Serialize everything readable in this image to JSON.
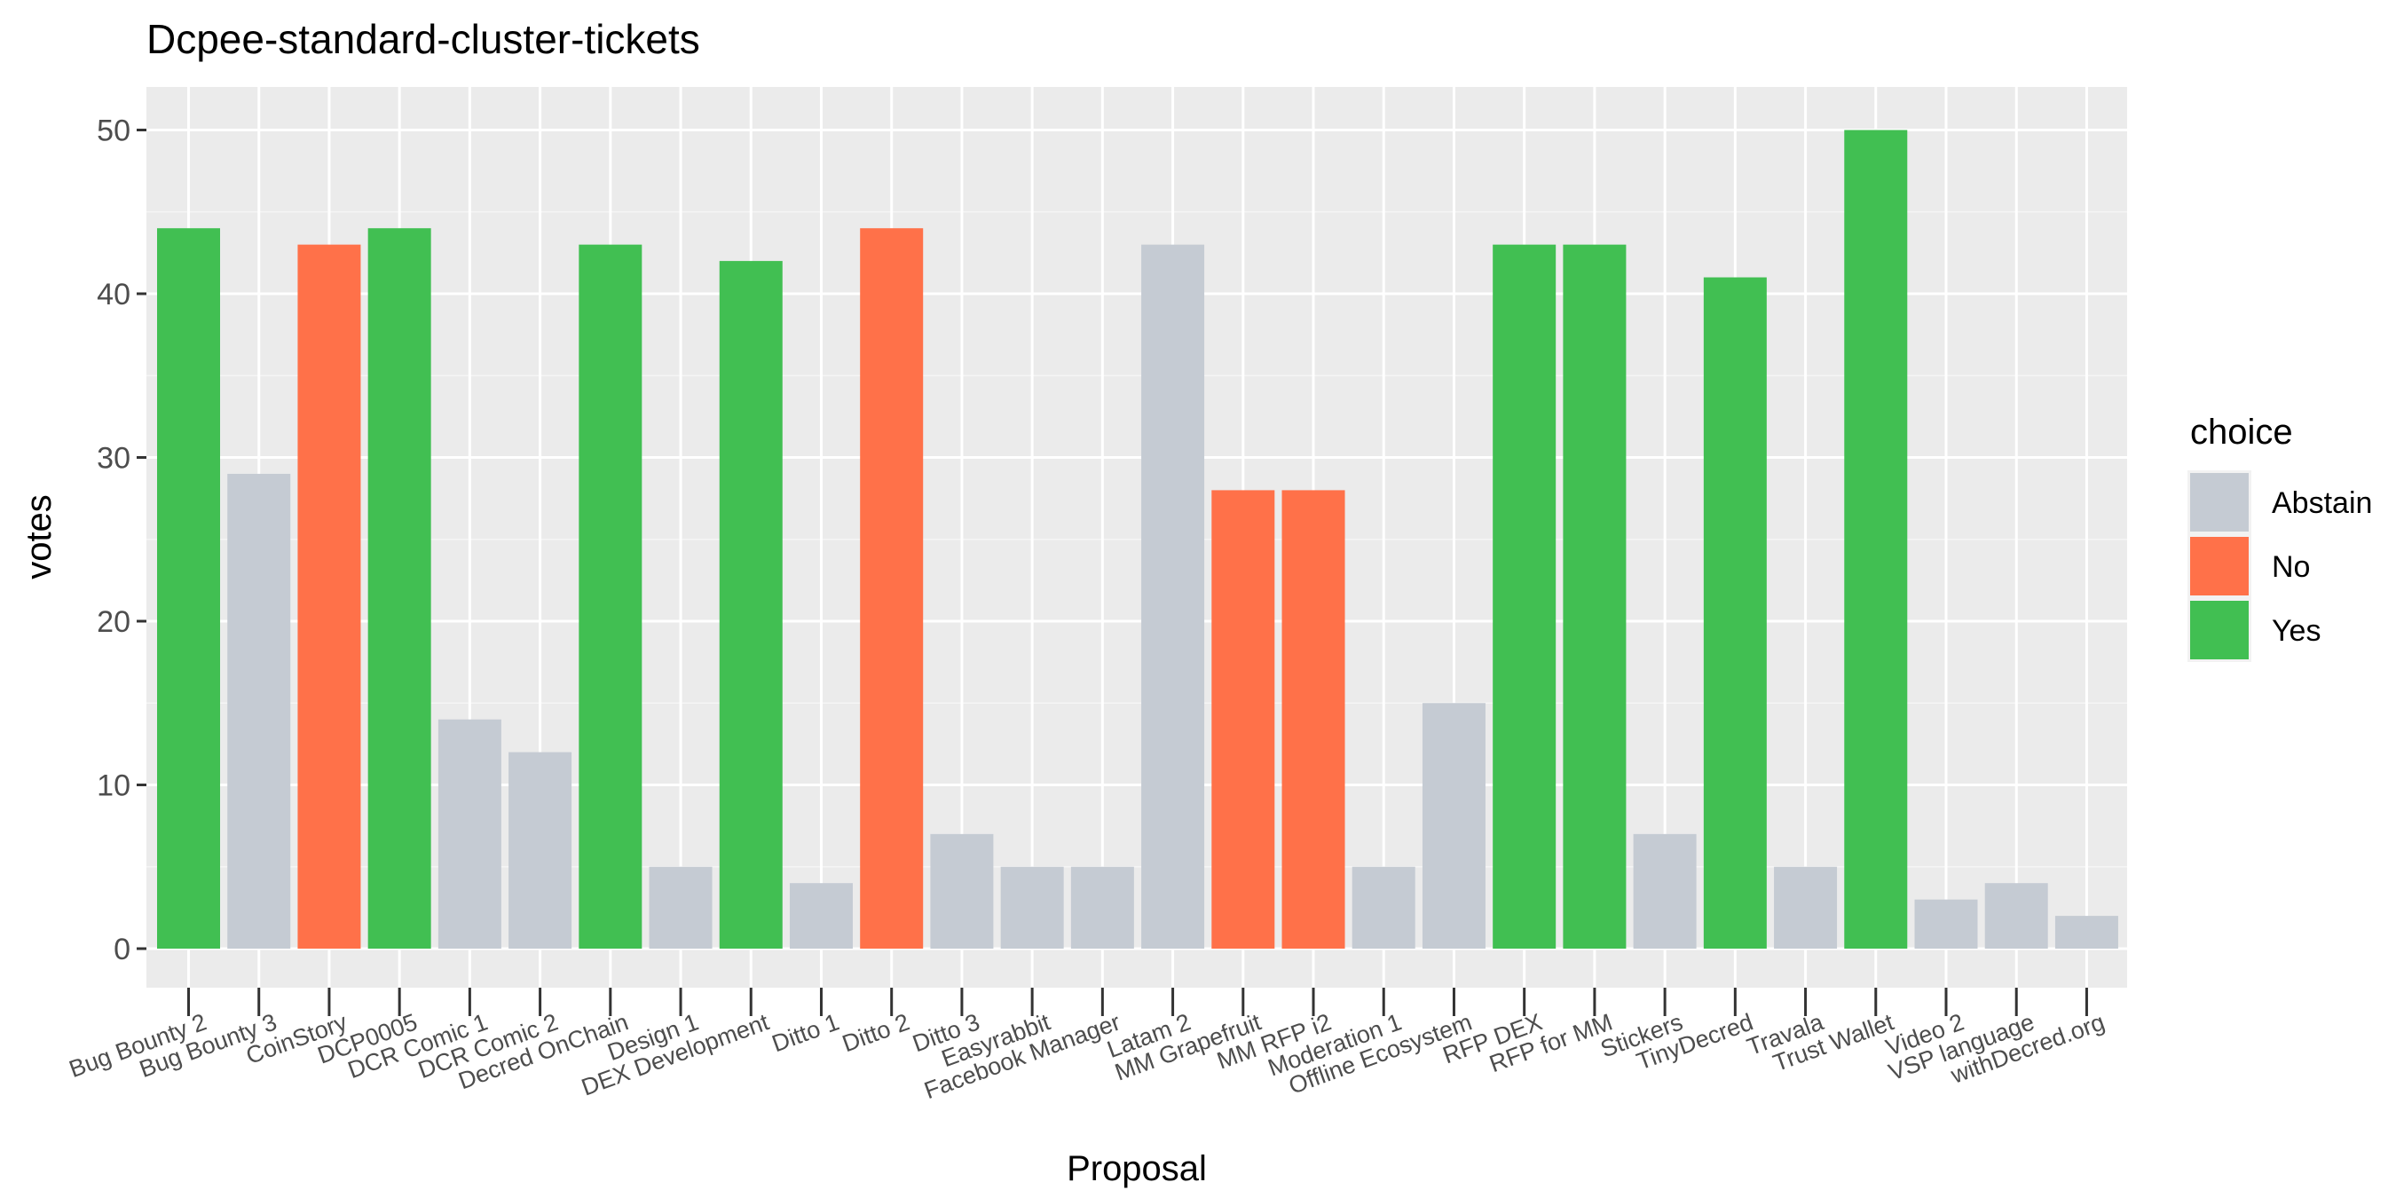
{
  "chart_data": {
    "type": "bar",
    "title": "Dcpee-standard-cluster-tickets",
    "xlabel": "Proposal",
    "ylabel": "votes",
    "ylim": [
      0,
      52
    ],
    "yticks": [
      0,
      10,
      20,
      30,
      40,
      50
    ],
    "grid": true,
    "legend_position": "right",
    "legend_title": "choice",
    "legend": [
      {
        "name": "Abstain",
        "color": "#C5CBD3"
      },
      {
        "name": "No",
        "color": "#FF7149"
      },
      {
        "name": "Yes",
        "color": "#41BF52"
      }
    ],
    "categories": [
      "Bug Bounty 2",
      "Bug Bounty 3",
      "CoinStory",
      "DCP0005",
      "DCR Comic 1",
      "DCR Comic 2",
      "Decred OnChain",
      "Design 1",
      "DEX Development",
      "Ditto 1",
      "Ditto 2",
      "Ditto 3",
      "Easyrabbit",
      "Facebook Manager",
      "Latam 2",
      "MM Grapefruit",
      "MM RFP i2",
      "Moderation 1",
      "Offline Ecosystem",
      "RFP DEX",
      "RFP for MM",
      "Stickers",
      "TinyDecred",
      "Travala",
      "Trust Wallet",
      "Video 2",
      "VSP language",
      "withDecred.org"
    ],
    "values": [
      44,
      29,
      43,
      44,
      14,
      12,
      43,
      5,
      42,
      4,
      44,
      7,
      5,
      5,
      43,
      28,
      28,
      5,
      15,
      43,
      43,
      7,
      41,
      5,
      50,
      3,
      4,
      2
    ],
    "choices": [
      "Yes",
      "Abstain",
      "No",
      "Yes",
      "Abstain",
      "Abstain",
      "Yes",
      "Abstain",
      "Yes",
      "Abstain",
      "No",
      "Abstain",
      "Abstain",
      "Abstain",
      "Abstain",
      "No",
      "No",
      "Abstain",
      "Abstain",
      "Yes",
      "Yes",
      "Abstain",
      "Yes",
      "Abstain",
      "Yes",
      "Abstain",
      "Abstain",
      "Abstain"
    ]
  }
}
